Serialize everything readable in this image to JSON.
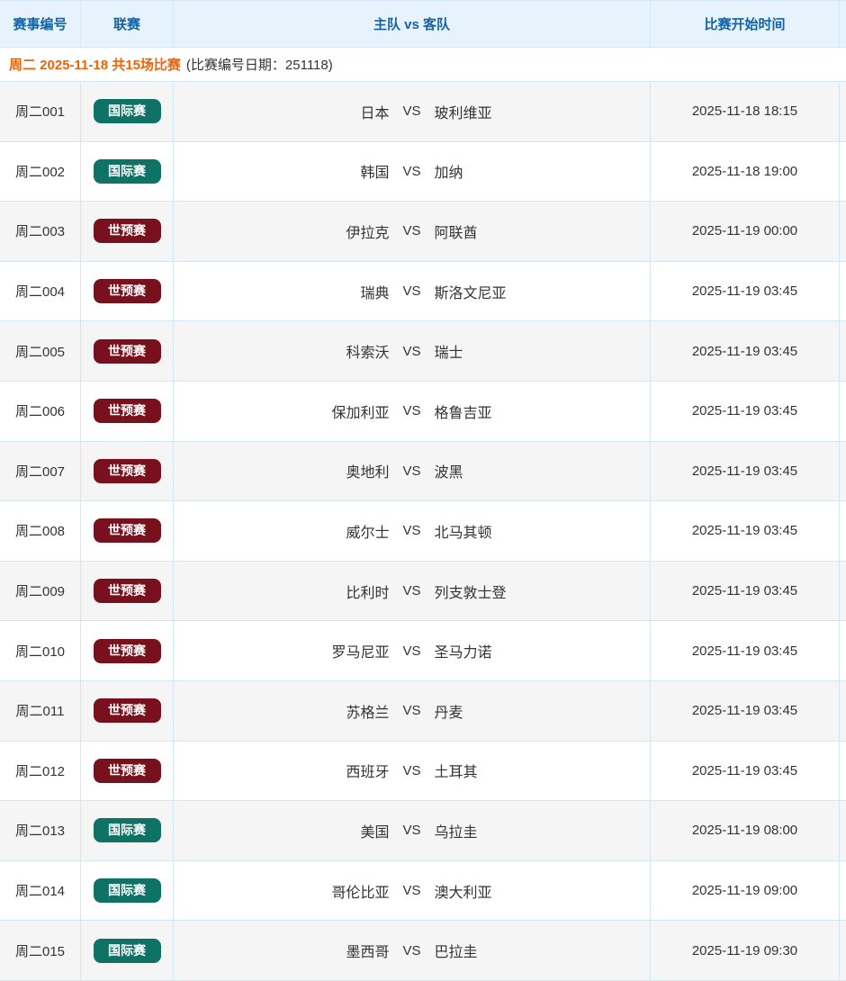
{
  "table": {
    "headers": [
      "赛事编号",
      "联赛",
      "主队 vs 客队",
      "比赛开始时间"
    ],
    "vs_label": "VS",
    "date_header": {
      "highlight": "周二 2025-11-18 共15场比赛",
      "note": "(比赛编号日期：251118)"
    },
    "rows": [
      {
        "id": "周二001",
        "league": "国际赛",
        "home": "日本",
        "away": "玻利维亚",
        "time": "2025-11-18 18:15"
      },
      {
        "id": "周二002",
        "league": "国际赛",
        "home": "韩国",
        "away": "加纳",
        "time": "2025-11-18 19:00"
      },
      {
        "id": "周二003",
        "league": "世预赛",
        "home": "伊拉克",
        "away": "阿联酋",
        "time": "2025-11-19 00:00"
      },
      {
        "id": "周二004",
        "league": "世预赛",
        "home": "瑞典",
        "away": "斯洛文尼亚",
        "time": "2025-11-19 03:45"
      },
      {
        "id": "周二005",
        "league": "世预赛",
        "home": "科索沃",
        "away": "瑞士",
        "time": "2025-11-19 03:45"
      },
      {
        "id": "周二006",
        "league": "世预赛",
        "home": "保加利亚",
        "away": "格鲁吉亚",
        "time": "2025-11-19 03:45"
      },
      {
        "id": "周二007",
        "league": "世预赛",
        "home": "奥地利",
        "away": "波黑",
        "time": "2025-11-19 03:45"
      },
      {
        "id": "周二008",
        "league": "世预赛",
        "home": "威尔士",
        "away": "北马其顿",
        "time": "2025-11-19 03:45"
      },
      {
        "id": "周二009",
        "league": "世预赛",
        "home": "比利时",
        "away": "列支敦士登",
        "time": "2025-11-19 03:45"
      },
      {
        "id": "周二010",
        "league": "世预赛",
        "home": "罗马尼亚",
        "away": "圣马力诺",
        "time": "2025-11-19 03:45"
      },
      {
        "id": "周二011",
        "league": "世预赛",
        "home": "苏格兰",
        "away": "丹麦",
        "time": "2025-11-19 03:45"
      },
      {
        "id": "周二012",
        "league": "世预赛",
        "home": "西班牙",
        "away": "土耳其",
        "time": "2025-11-19 03:45"
      },
      {
        "id": "周二013",
        "league": "国际赛",
        "home": "美国",
        "away": "乌拉圭",
        "time": "2025-11-19 08:00"
      },
      {
        "id": "周二014",
        "league": "国际赛",
        "home": "哥伦比亚",
        "away": "澳大利亚",
        "time": "2025-11-19 09:00"
      },
      {
        "id": "周二015",
        "league": "国际赛",
        "home": "墨西哥",
        "away": "巴拉圭",
        "time": "2025-11-19 09:30"
      }
    ]
  },
  "colors": {
    "header_bg": "#e6f3fc",
    "header_text": "#1563a2",
    "border": "#d3e7f4",
    "row_alt_bg": "#f5f5f6",
    "date_highlight": "#f26200",
    "badge_text": "#ffffff",
    "text": "#333333",
    "league_colors": {
      "国际赛": "#0e7265",
      "世预赛": "#78101d"
    }
  }
}
